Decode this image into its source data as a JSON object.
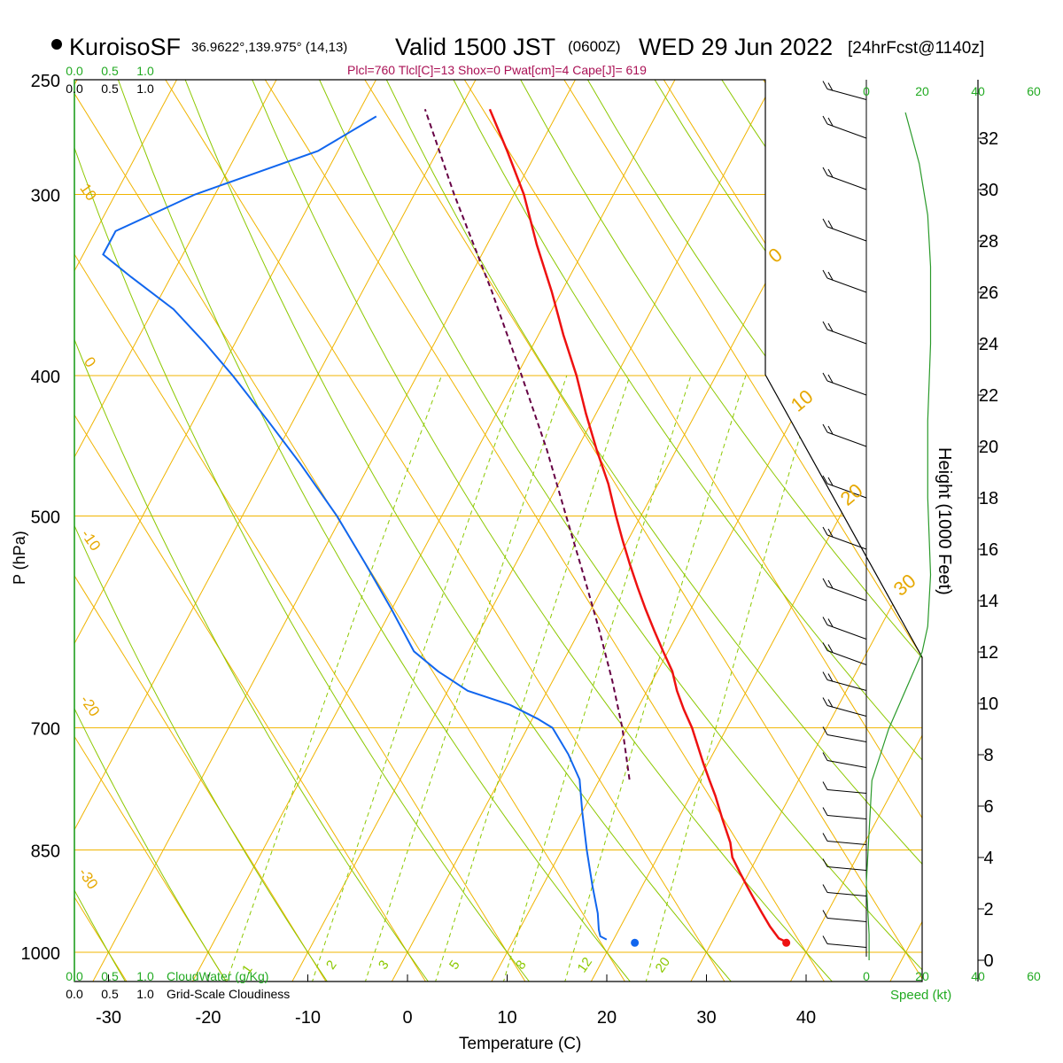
{
  "header": {
    "site": "KuroisoSF",
    "coords": "36.9622°,139.975° (14,13)",
    "valid": "Valid 1500 JST",
    "zulu": "(0600Z)",
    "date": "WED 29 Jun 2022",
    "forecast": "[24hrFcst@1140z]",
    "indices": "Plcl=760 Tlcl[C]=13 Shox=0 Pwat[cm]=4 Cape[J]= 619"
  },
  "colors": {
    "temperature": "#ee1111",
    "dewpoint": "#1166ee",
    "parcel": "#660044",
    "isotherm_isobar": "#f0b400",
    "dry_adiabat": "#8cc800",
    "mixing_ratio": "#8cc800",
    "scale_green": "#22aa22",
    "indices_text": "#aa1155"
  },
  "chart_data": {
    "type": "skew-t",
    "xlabel": "Temperature (C)",
    "ylabel": "P (hPa)",
    "right_label": "Height (1000 Feet)",
    "x_ticks": [
      -30,
      -20,
      -10,
      0,
      10,
      20,
      30,
      40
    ],
    "p_ticks": [
      250,
      300,
      400,
      500,
      700,
      850,
      1000
    ],
    "height_ticks": [
      0,
      2,
      4,
      6,
      8,
      10,
      12,
      14,
      16,
      18,
      20,
      22,
      24,
      26,
      28,
      30,
      32
    ],
    "speed_ticks": [
      0,
      20,
      40,
      60
    ],
    "speed_label": "Speed (kt)",
    "cloud_scale": [
      "0.0",
      "0.5",
      "1.0"
    ],
    "cloud_water_label": "CloudWater (g/Kg)",
    "cloudiness_label": "Grid-Scale Cloudiness",
    "isotherm_labels": [
      "10",
      "0",
      "-10",
      "-20",
      "-30"
    ],
    "theta_labels": [
      "0",
      "10",
      "20",
      "30"
    ],
    "mixing_ratio_labels": [
      "1",
      "2",
      "3",
      "5",
      "8",
      "12",
      "20"
    ],
    "temperature_profile": [
      {
        "p": 984,
        "t": 37.5
      },
      {
        "p": 978,
        "t": 36.5
      },
      {
        "p": 960,
        "t": 35.0
      },
      {
        "p": 940,
        "t": 33.5
      },
      {
        "p": 920,
        "t": 32.0
      },
      {
        "p": 900,
        "t": 30.5
      },
      {
        "p": 880,
        "t": 29.0
      },
      {
        "p": 860,
        "t": 27.5
      },
      {
        "p": 840,
        "t": 26.5
      },
      {
        "p": 810,
        "t": 24.5
      },
      {
        "p": 780,
        "t": 22.5
      },
      {
        "p": 760,
        "t": 21.0
      },
      {
        "p": 740,
        "t": 19.5
      },
      {
        "p": 700,
        "t": 16.5
      },
      {
        "p": 680,
        "t": 14.7
      },
      {
        "p": 660,
        "t": 13.0
      },
      {
        "p": 640,
        "t": 11.5
      },
      {
        "p": 620,
        "t": 9.5
      },
      {
        "p": 600,
        "t": 7.5
      },
      {
        "p": 580,
        "t": 5.5
      },
      {
        "p": 560,
        "t": 3.5
      },
      {
        "p": 540,
        "t": 1.5
      },
      {
        "p": 520,
        "t": -0.5
      },
      {
        "p": 500,
        "t": -2.5
      },
      {
        "p": 475,
        "t": -5.0
      },
      {
        "p": 450,
        "t": -8.0
      },
      {
        "p": 425,
        "t": -11.0
      },
      {
        "p": 400,
        "t": -14.0
      },
      {
        "p": 375,
        "t": -17.5
      },
      {
        "p": 350,
        "t": -21.0
      },
      {
        "p": 325,
        "t": -25.0
      },
      {
        "p": 300,
        "t": -29.0
      },
      {
        "p": 280,
        "t": -33.0
      },
      {
        "p": 262,
        "t": -37.0
      }
    ],
    "dewpoint_profile": [
      {
        "p": 980,
        "t": 19.3
      },
      {
        "p": 975,
        "t": 18.5
      },
      {
        "p": 965,
        "t": 18.0
      },
      {
        "p": 940,
        "t": 17.0
      },
      {
        "p": 900,
        "t": 15.0
      },
      {
        "p": 850,
        "t": 12.5
      },
      {
        "p": 800,
        "t": 10.0
      },
      {
        "p": 760,
        "t": 8.0
      },
      {
        "p": 730,
        "t": 5.5
      },
      {
        "p": 700,
        "t": 2.5
      },
      {
        "p": 690,
        "t": 0.5
      },
      {
        "p": 675,
        "t": -3.0
      },
      {
        "p": 660,
        "t": -8.0
      },
      {
        "p": 640,
        "t": -12.0
      },
      {
        "p": 620,
        "t": -15.5
      },
      {
        "p": 580,
        "t": -20.0
      },
      {
        "p": 540,
        "t": -25.0
      },
      {
        "p": 500,
        "t": -30.5
      },
      {
        "p": 460,
        "t": -37.0
      },
      {
        "p": 430,
        "t": -42.5
      },
      {
        "p": 400,
        "t": -48.5
      },
      {
        "p": 380,
        "t": -53.0
      },
      {
        "p": 360,
        "t": -58.0
      },
      {
        "p": 342,
        "t": -64.0
      },
      {
        "p": 330,
        "t": -68.0
      },
      {
        "p": 318,
        "t": -68.0
      },
      {
        "p": 300,
        "t": -62.0
      },
      {
        "p": 280,
        "t": -52.0
      },
      {
        "p": 265,
        "t": -48.0
      }
    ],
    "parcel_profile": [
      {
        "p": 760,
        "t": 13.0
      },
      {
        "p": 700,
        "t": 9.5
      },
      {
        "p": 650,
        "t": 6.0
      },
      {
        "p": 600,
        "t": 2.0
      },
      {
        "p": 550,
        "t": -2.5
      },
      {
        "p": 500,
        "t": -7.5
      },
      {
        "p": 450,
        "t": -13.0
      },
      {
        "p": 400,
        "t": -19.5
      },
      {
        "p": 350,
        "t": -27.0
      },
      {
        "p": 300,
        "t": -36.0
      },
      {
        "p": 262,
        "t": -43.5
      }
    ],
    "surface_temperature": 37.5,
    "surface_dewpoint": 22.3,
    "surface_pressure": 985,
    "wind_speed_profile_kt": [
      {
        "h": 0,
        "s": 1
      },
      {
        "h": 1,
        "s": 1
      },
      {
        "h": 3,
        "s": 0
      },
      {
        "h": 5,
        "s": 1
      },
      {
        "h": 7,
        "s": 2
      },
      {
        "h": 8,
        "s": 5
      },
      {
        "h": 9,
        "s": 8
      },
      {
        "h": 10,
        "s": 12
      },
      {
        "h": 11,
        "s": 16
      },
      {
        "h": 12,
        "s": 20
      },
      {
        "h": 13,
        "s": 22
      },
      {
        "h": 15,
        "s": 23
      },
      {
        "h": 18,
        "s": 22
      },
      {
        "h": 21,
        "s": 22
      },
      {
        "h": 24,
        "s": 23
      },
      {
        "h": 27,
        "s": 23
      },
      {
        "h": 29,
        "s": 22
      },
      {
        "h": 31,
        "s": 19
      },
      {
        "h": 33,
        "s": 14
      }
    ],
    "wind_barbs": [
      {
        "h": 0.5,
        "s": 5,
        "d": 320
      },
      {
        "h": 1.5,
        "s": 5,
        "d": 310
      },
      {
        "h": 2.5,
        "s": 5,
        "d": 300
      },
      {
        "h": 3.5,
        "s": 5,
        "d": 290
      },
      {
        "h": 4.5,
        "s": 5,
        "d": 280
      },
      {
        "h": 5.5,
        "s": 5,
        "d": 275
      },
      {
        "h": 6.5,
        "s": 5,
        "d": 270
      },
      {
        "h": 7.5,
        "s": 10,
        "d": 265
      },
      {
        "h": 8.5,
        "s": 10,
        "d": 262
      },
      {
        "h": 9.5,
        "s": 15,
        "d": 260
      },
      {
        "h": 10.5,
        "s": 15,
        "d": 258
      },
      {
        "h": 11.5,
        "s": 20,
        "d": 255
      },
      {
        "h": 12.5,
        "s": 20,
        "d": 252
      },
      {
        "h": 14,
        "s": 20,
        "d": 250
      },
      {
        "h": 16,
        "s": 20,
        "d": 250
      },
      {
        "h": 18,
        "s": 20,
        "d": 250
      },
      {
        "h": 20,
        "s": 20,
        "d": 250
      },
      {
        "h": 22,
        "s": 20,
        "d": 250
      },
      {
        "h": 24,
        "s": 20,
        "d": 250
      },
      {
        "h": 26,
        "s": 20,
        "d": 250
      },
      {
        "h": 28,
        "s": 20,
        "d": 250
      },
      {
        "h": 30,
        "s": 20,
        "d": 250
      },
      {
        "h": 32,
        "s": 20,
        "d": 250
      },
      {
        "h": 33.5,
        "s": 15,
        "d": 250
      }
    ]
  }
}
